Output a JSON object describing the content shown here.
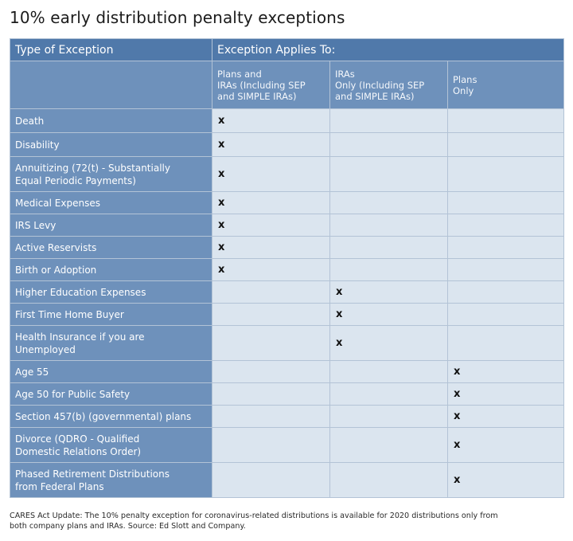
{
  "title": "10% early distribution penalty exceptions",
  "table": {
    "header_type": "Type of Exception",
    "header_applies": "Exception Applies To:",
    "columns": [
      {
        "line1": "Plans and",
        "line2": "IRAs (Including SEP",
        "line3": "and SIMPLE IRAs)"
      },
      {
        "line1": "IRAs",
        "line2": "Only (Including SEP",
        "line3": "and SIMPLE IRAs)"
      },
      {
        "line1": "Plans",
        "line2": "Only",
        "line3": ""
      }
    ],
    "mark": "x",
    "rows": [
      {
        "line1": "Death",
        "line2": "",
        "applies": [
          true,
          false,
          false
        ],
        "height": 30
      },
      {
        "line1": "Disability",
        "line2": "",
        "applies": [
          true,
          false,
          false
        ],
        "height": 30
      },
      {
        "line1": "Annuitizing (72(t) - Substantially",
        "line2": "Equal Periodic Payments)",
        "applies": [
          true,
          false,
          false
        ],
        "height": 44
      },
      {
        "line1": "Medical Expenses",
        "line2": "",
        "applies": [
          true,
          false,
          false
        ],
        "height": 28
      },
      {
        "line1": "IRS Levy",
        "line2": "",
        "applies": [
          true,
          false,
          false
        ],
        "height": 28
      },
      {
        "line1": "Active Reservists",
        "line2": "",
        "applies": [
          true,
          false,
          false
        ],
        "height": 28
      },
      {
        "line1": "Birth or Adoption",
        "line2": "",
        "applies": [
          true,
          false,
          false
        ],
        "height": 28
      },
      {
        "line1": "Higher Education Expenses",
        "line2": "",
        "applies": [
          false,
          true,
          false
        ],
        "height": 28
      },
      {
        "line1": "First Time Home Buyer",
        "line2": "",
        "applies": [
          false,
          true,
          false
        ],
        "height": 28
      },
      {
        "line1": "Health Insurance if you are",
        "line2": "Unemployed",
        "applies": [
          false,
          true,
          false
        ],
        "height": 44
      },
      {
        "line1": "Age 55",
        "line2": "",
        "applies": [
          false,
          false,
          true
        ],
        "height": 28
      },
      {
        "line1": "Age 50 for Public Safety",
        "line2": "",
        "applies": [
          false,
          false,
          true
        ],
        "height": 28
      },
      {
        "line1": "Section 457(b) (governmental) plans",
        "line2": "",
        "applies": [
          false,
          false,
          true
        ],
        "height": 28
      },
      {
        "line1": "Divorce (QDRO - Qualified",
        "line2": "Domestic Relations Order)",
        "applies": [
          false,
          false,
          true
        ],
        "height": 44
      },
      {
        "line1": "Phased Retirement Distributions",
        "line2": "from Federal Plans",
        "applies": [
          false,
          false,
          true
        ],
        "height": 44
      }
    ]
  },
  "footnote": {
    "line1": "CARES Act Update: The 10% penalty exception for coronavirus-related distributions is available for 2020 distributions only from",
    "line2": "both company plans and IRAs. Source: Ed Slott and Company."
  }
}
